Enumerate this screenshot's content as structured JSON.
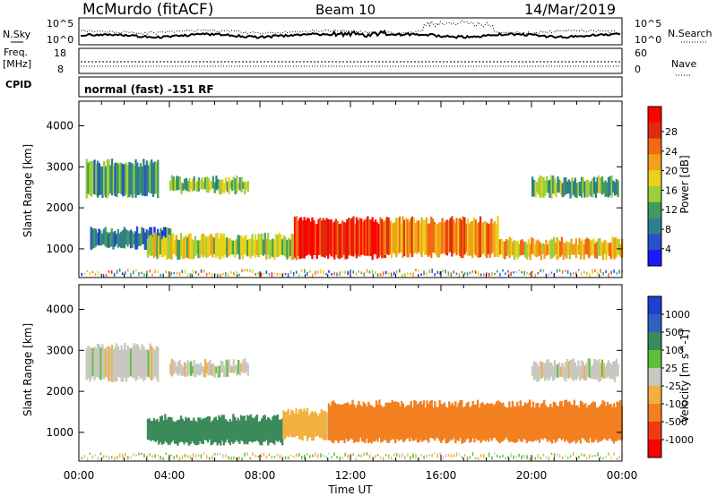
{
  "header": {
    "station": "McMurdo (fitACF)",
    "beam": "Beam 10",
    "date": "14/Mar/2019"
  },
  "noise_panel": {
    "left_label": "N.Sky",
    "right_label": "N.Search",
    "left_ticks": [
      "10^5",
      "10^0"
    ],
    "right_ticks": [
      "10^5",
      "10^0"
    ]
  },
  "freq_panel": {
    "left_label_1": "Freq.",
    "left_label_2": "[MHz]",
    "right_label": "Nave",
    "left_ticks": [
      "18",
      "8"
    ],
    "right_ticks": [
      "60",
      "0"
    ]
  },
  "cpid": {
    "label": "CPID",
    "text": "normal (fast) -151 RF"
  },
  "colors": {
    "power_scale": [
      "#1a1aff",
      "#2850c8",
      "#2f7f8a",
      "#3f9a5e",
      "#9ccf3a",
      "#e8d21a",
      "#f2a01a",
      "#f26a10",
      "#e02a10",
      "#ff0000"
    ],
    "velocity_scale": [
      "#ff0000",
      "#f23a10",
      "#f28020",
      "#f2b040",
      "#c8c8c0",
      "#5fbf3a",
      "#3a8a5a",
      "#3060c0",
      "#2040d0"
    ]
  },
  "chart_data": [
    {
      "type": "heatmap",
      "name": "power-panel",
      "ylabel": "Slant Range [km]",
      "ylim": [
        300,
        4600
      ],
      "yticks": [
        "4000",
        "3000",
        "2000",
        "1000"
      ],
      "xlim_hours": [
        0,
        24
      ],
      "colorbar": {
        "label": "Power [dB]",
        "ticks": [
          "28",
          "24",
          "20",
          "16",
          "12",
          "8",
          "4"
        ]
      },
      "bands": [
        {
          "t0": 0.5,
          "t1": 4.0,
          "r0": 1050,
          "r1": 1450,
          "value": 8
        },
        {
          "t0": 3.0,
          "t1": 9.5,
          "r0": 800,
          "r1": 1300,
          "value": 16
        },
        {
          "t0": 9.5,
          "t1": 13.5,
          "r0": 800,
          "r1": 1700,
          "value": 28
        },
        {
          "t0": 13.5,
          "t1": 18.5,
          "r0": 850,
          "r1": 1700,
          "value": 22
        },
        {
          "t0": 18.5,
          "t1": 24.0,
          "r0": 800,
          "r1": 1200,
          "value": 20
        },
        {
          "t0": 0.3,
          "t1": 3.5,
          "r0": 2300,
          "r1": 3100,
          "value": 10
        },
        {
          "t0": 4.0,
          "t1": 7.5,
          "r0": 2400,
          "r1": 2700,
          "value": 14
        },
        {
          "t0": 20.0,
          "t1": 23.8,
          "r0": 2300,
          "r1": 2700,
          "value": 12
        }
      ]
    },
    {
      "type": "heatmap",
      "name": "velocity-panel",
      "ylabel": "Slant Range [km]",
      "ylim": [
        300,
        4600
      ],
      "yticks": [
        "4000",
        "3000",
        "2000",
        "1000"
      ],
      "xlim_hours": [
        0,
        24
      ],
      "xlabel": "Time UT",
      "xticks": [
        "00:00",
        "04:00",
        "08:00",
        "12:00",
        "16:00",
        "20:00",
        "00:00"
      ],
      "colorbar": {
        "label": "Velocity [m s^-1]",
        "ticks": [
          "1000",
          "500",
          "100",
          "25",
          "-25",
          "-100",
          "-500",
          "-1000"
        ]
      },
      "bands": [
        {
          "t0": 3.0,
          "t1": 9.0,
          "r0": 750,
          "r1": 1350,
          "value": 150
        },
        {
          "t0": 9.0,
          "t1": 11.0,
          "r0": 850,
          "r1": 1500,
          "value": -50
        },
        {
          "t0": 11.0,
          "t1": 24.0,
          "r0": 800,
          "r1": 1700,
          "value": -150
        },
        {
          "t0": 0.3,
          "t1": 3.5,
          "r0": 2300,
          "r1": 3100,
          "value": 0
        },
        {
          "t0": 4.0,
          "t1": 7.5,
          "r0": 2400,
          "r1": 2700,
          "value": 0
        },
        {
          "t0": 20.0,
          "t1": 23.8,
          "r0": 2300,
          "r1": 2700,
          "value": 0
        }
      ]
    }
  ]
}
